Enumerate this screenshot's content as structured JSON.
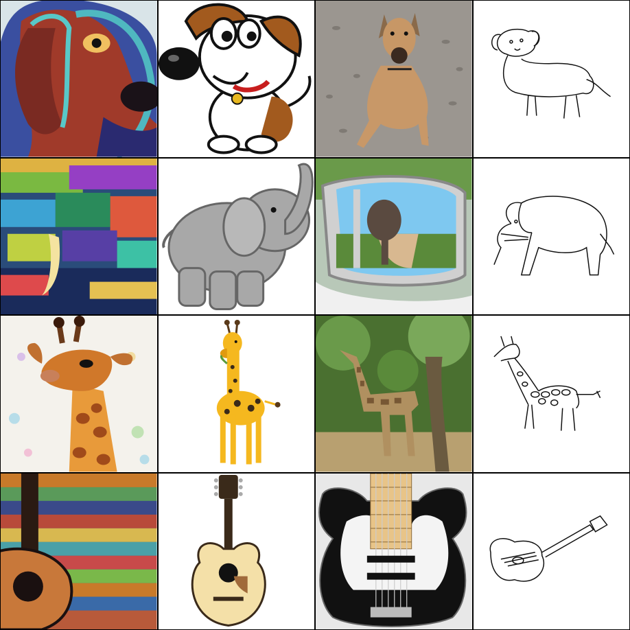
{
  "grid": {
    "rows": 4,
    "columns": 4,
    "column_styles": [
      "painting",
      "cartoon",
      "photo",
      "sketch"
    ],
    "row_subjects": [
      "dog",
      "elephant",
      "giraffe",
      "guitar"
    ]
  },
  "cells": [
    {
      "subject": "dog",
      "style": "painting",
      "icon": "dog-painting-icon"
    },
    {
      "subject": "dog",
      "style": "cartoon",
      "icon": "dog-cartoon-icon"
    },
    {
      "subject": "dog",
      "style": "photo",
      "icon": "dog-photo-icon"
    },
    {
      "subject": "dog",
      "style": "sketch",
      "icon": "dog-sketch-icon"
    },
    {
      "subject": "elephant",
      "style": "painting",
      "icon": "elephant-painting-icon"
    },
    {
      "subject": "elephant",
      "style": "cartoon",
      "icon": "elephant-cartoon-icon"
    },
    {
      "subject": "elephant",
      "style": "photo",
      "icon": "elephant-photo-icon"
    },
    {
      "subject": "elephant",
      "style": "sketch",
      "icon": "elephant-sketch-icon"
    },
    {
      "subject": "giraffe",
      "style": "painting",
      "icon": "giraffe-painting-icon"
    },
    {
      "subject": "giraffe",
      "style": "cartoon",
      "icon": "giraffe-cartoon-icon"
    },
    {
      "subject": "giraffe",
      "style": "photo",
      "icon": "giraffe-photo-icon"
    },
    {
      "subject": "giraffe",
      "style": "sketch",
      "icon": "giraffe-sketch-icon"
    },
    {
      "subject": "guitar",
      "style": "painting",
      "icon": "guitar-painting-icon"
    },
    {
      "subject": "guitar",
      "style": "cartoon",
      "icon": "guitar-cartoon-icon"
    },
    {
      "subject": "guitar",
      "style": "photo",
      "icon": "guitar-photo-icon"
    },
    {
      "subject": "guitar",
      "style": "sketch",
      "icon": "guitar-sketch-icon"
    }
  ],
  "colors": {
    "grid_line": "#000000",
    "background": "#ffffff",
    "giraffe_yellow": "#f5b81f",
    "elephant_gray": "#a8a8a8"
  }
}
